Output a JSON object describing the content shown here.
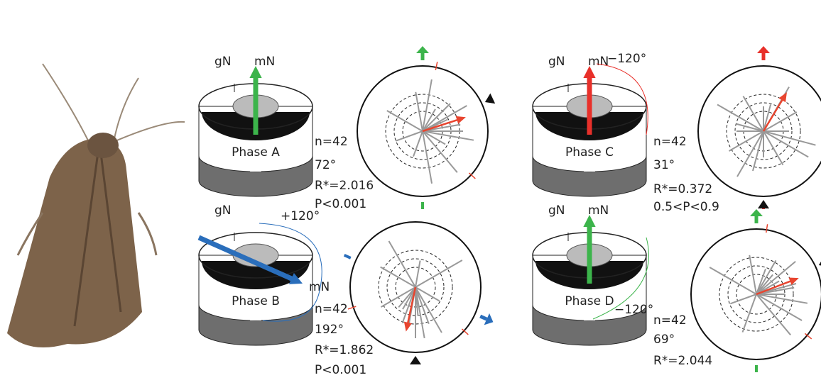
{
  "panels": [
    {
      "gN": "gN",
      "mN": "mN",
      "phase": "Phase A",
      "color": "#3cb44b",
      "n": "n=42",
      "mean": {
        "value": 72,
        "label": "72°"
      },
      "R": "R*=2.016",
      "P": "P<0.001",
      "shift": null,
      "headings": [
        72,
        60,
        80,
        30,
        100,
        45,
        120,
        10,
        350,
        200,
        170,
        90,
        65,
        140,
        300,
        250
      ]
    },
    {
      "gN": "gN",
      "mN": "mN",
      "phase": "Phase B",
      "color": "#2a6ebb",
      "n": "n=42",
      "mean": {
        "value": 192,
        "label": "192°"
      },
      "R": "R*=1.862",
      "P": "P<0.001",
      "shift": "+120°",
      "headings": [
        192,
        180,
        200,
        210,
        170,
        160,
        220,
        150,
        240,
        10,
        330,
        300,
        120,
        60,
        190,
        175
      ]
    },
    {
      "gN": "gN",
      "mN": "mN",
      "phase": "Phase C",
      "color": "#e8302a",
      "n": "n=42",
      "mean": {
        "value": 31,
        "label": "31°"
      },
      "R": "R*=0.372",
      "P": "0.5<P<0.9",
      "shift": "−120°",
      "headings": [
        0,
        30,
        60,
        90,
        120,
        150,
        180,
        210,
        240,
        270,
        300,
        330,
        15,
        105,
        195,
        285
      ]
    },
    {
      "gN": "gN",
      "mN": "mN",
      "phase": "Phase D",
      "color": "#3cb44b",
      "n": "n=42",
      "mean": {
        "value": 69,
        "label": "69°"
      },
      "R": "R*=2.044",
      "P": null,
      "shift": "−120°",
      "headings": [
        69,
        50,
        80,
        40,
        100,
        30,
        60,
        120,
        350,
        20,
        140,
        200,
        250,
        300,
        75,
        90
      ]
    }
  ]
}
